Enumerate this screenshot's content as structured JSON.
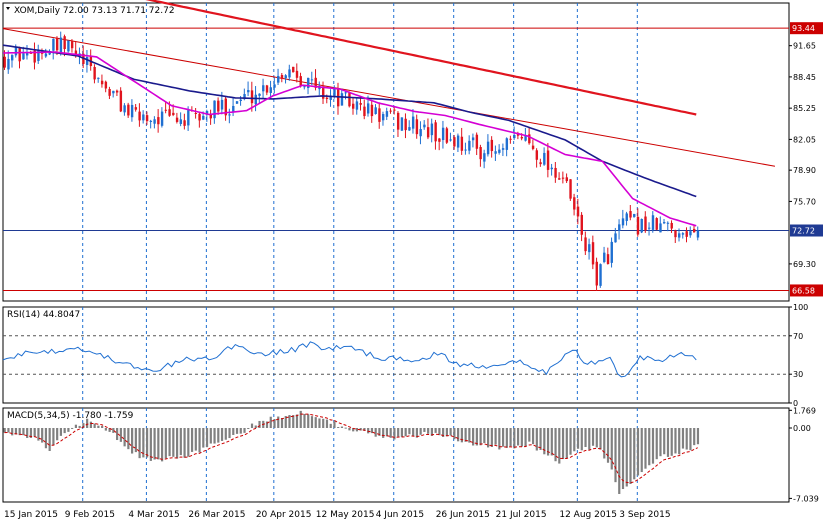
{
  "chart_data": [
    {
      "type": "candlestick",
      "title": "XOM,Daily 72.00 73.13 71.71 72.72",
      "symbol": "XOM",
      "timeframe": "Daily",
      "ohlc_last": {
        "open": 72.0,
        "high": 73.13,
        "low": 71.71,
        "close": 72.72
      },
      "y_ticks": [
        "91.65",
        "88.45",
        "85.25",
        "82.05",
        "78.90",
        "75.70",
        "69.30"
      ],
      "ylim": [
        65.5,
        95.2
      ],
      "price_labels": [
        {
          "text": "93.44",
          "value": 93.44,
          "color": "#cc0000"
        },
        {
          "text": "72.72",
          "value": 72.72,
          "color": "#1f3a93"
        },
        {
          "text": "66.58",
          "value": 66.58,
          "color": "#cc0000"
        }
      ],
      "x_tick_labels": [
        "15 Jan 2015",
        "9 Feb 2015",
        "4 Mar 2015",
        "26 Mar 2015",
        "20 Apr 2015",
        "12 May 2015",
        "4 Jun 2015",
        "26 Jun 2015",
        "21 Jul 2015",
        "12 Aug 2015",
        "3 Sep 2015"
      ],
      "colors": {
        "up": "#1f6fd1",
        "down": "#e0141e",
        "ma_fast": "#d400d4",
        "ma_mid": "#1a1a8c",
        "ma_slow": "#e0141e",
        "trendline": "#cc0000"
      },
      "key_points": [
        {
          "date": "15 Jan 2015",
          "close": 90.5
        },
        {
          "date": "9 Feb 2015",
          "close": 91.5
        },
        {
          "date": "4 Mar 2015",
          "close": 84.5
        },
        {
          "date": "26 Mar 2015",
          "close": 84.0
        },
        {
          "date": "20 Apr 2015",
          "close": 87.0
        },
        {
          "date": "1 May 2015",
          "close": 89.5
        },
        {
          "date": "12 May 2015",
          "close": 87.0
        },
        {
          "date": "4 Jun 2015",
          "close": 84.5
        },
        {
          "date": "26 Jun 2015",
          "close": 82.5
        },
        {
          "date": "21 Jul 2015",
          "close": 80.5
        },
        {
          "date": "30 Jul 2015",
          "close": 82.5
        },
        {
          "date": "12 Aug 2015",
          "close": 78.0
        },
        {
          "date": "24 Aug 2015",
          "close": 68.0
        },
        {
          "date": "3 Sep 2015",
          "close": 73.5
        },
        {
          "date": "15 Sep 2015",
          "close": 72.72
        }
      ],
      "ma_fast_points": [
        [
          0,
          90.9
        ],
        [
          14,
          91.0
        ],
        [
          25,
          90.5
        ],
        [
          35,
          88.0
        ],
        [
          45,
          85.5
        ],
        [
          55,
          84.6
        ],
        [
          65,
          85.0
        ],
        [
          72,
          86.5
        ],
        [
          80,
          87.6
        ],
        [
          90,
          87.2
        ],
        [
          100,
          85.8
        ],
        [
          110,
          84.9
        ],
        [
          118,
          84.5
        ],
        [
          128,
          83.5
        ],
        [
          140,
          82.4
        ],
        [
          150,
          80.5
        ],
        [
          160,
          79.8
        ],
        [
          168,
          76.0
        ],
        [
          178,
          74.0
        ],
        [
          185,
          73.2
        ]
      ],
      "ma_mid_points": [
        [
          0,
          91.7
        ],
        [
          20,
          90.6
        ],
        [
          35,
          88.2
        ],
        [
          50,
          87.0
        ],
        [
          62,
          86.3
        ],
        [
          72,
          86.2
        ],
        [
          85,
          86.5
        ],
        [
          100,
          86.2
        ],
        [
          115,
          85.8
        ],
        [
          125,
          84.8
        ],
        [
          135,
          84.0
        ],
        [
          150,
          82.0
        ],
        [
          160,
          79.8
        ],
        [
          172,
          78.0
        ],
        [
          185,
          76.2
        ]
      ],
      "ma_slow_points": [
        [
          0,
          99.5
        ],
        [
          185,
          84.6
        ]
      ],
      "trendline_points": [
        [
          0,
          93.4
        ],
        [
          206,
          79.3
        ]
      ]
    },
    {
      "type": "line",
      "title": "RSI(14) 44.8047",
      "name": "RSI(14)",
      "last_value": 44.8047,
      "ylim": [
        0,
        100
      ],
      "levels": [
        70,
        30
      ],
      "y_ticks": [
        "100",
        "70",
        "30",
        "0"
      ],
      "color": "#1f6fd1",
      "points": [
        [
          0,
          44
        ],
        [
          5,
          52
        ],
        [
          10,
          54
        ],
        [
          15,
          55
        ],
        [
          20,
          58
        ],
        [
          28,
          47
        ],
        [
          36,
          36
        ],
        [
          40,
          32
        ],
        [
          48,
          45
        ],
        [
          55,
          46
        ],
        [
          62,
          60
        ],
        [
          70,
          50
        ],
        [
          78,
          56
        ],
        [
          82,
          62
        ],
        [
          86,
          57
        ],
        [
          92,
          58
        ],
        [
          100,
          48
        ],
        [
          108,
          44
        ],
        [
          116,
          51
        ],
        [
          122,
          40
        ],
        [
          130,
          39
        ],
        [
          138,
          45
        ],
        [
          145,
          31
        ],
        [
          152,
          57
        ],
        [
          156,
          40
        ],
        [
          162,
          50
        ],
        [
          165,
          25
        ],
        [
          170,
          48
        ],
        [
          176,
          46
        ],
        [
          180,
          52
        ],
        [
          185,
          45
        ]
      ]
    },
    {
      "type": "bar",
      "title": "MACD(5,34,5) -1.780 -1.759",
      "name": "MACD(5,34,5)",
      "last_values": [
        -1.78,
        -1.759
      ],
      "ylim": [
        -7.4,
        2.0
      ],
      "y_ticks": [
        "1.769",
        "0.00",
        "-7.039"
      ],
      "bar_color": "#808080",
      "signal_color": "#cc0000",
      "points": [
        [
          0,
          -0.4
        ],
        [
          8,
          -1.0
        ],
        [
          12,
          -2.1
        ],
        [
          18,
          0.1
        ],
        [
          22,
          0.8
        ],
        [
          28,
          -0.2
        ],
        [
          34,
          -2.5
        ],
        [
          40,
          -3.3
        ],
        [
          48,
          -2.8
        ],
        [
          56,
          -1.6
        ],
        [
          62,
          -0.8
        ],
        [
          68,
          0.7
        ],
        [
          75,
          1.3
        ],
        [
          80,
          1.6
        ],
        [
          84,
          1.1
        ],
        [
          90,
          0.2
        ],
        [
          96,
          -0.5
        ],
        [
          104,
          -1.1
        ],
        [
          112,
          -0.6
        ],
        [
          118,
          -0.8
        ],
        [
          125,
          -1.5
        ],
        [
          133,
          -2.0
        ],
        [
          140,
          -1.6
        ],
        [
          148,
          -3.4
        ],
        [
          152,
          -2.4
        ],
        [
          158,
          -1.8
        ],
        [
          162,
          -4.2
        ],
        [
          164,
          -6.4
        ],
        [
          168,
          -5.0
        ],
        [
          174,
          -3.0
        ],
        [
          180,
          -2.4
        ],
        [
          185,
          -1.8
        ]
      ]
    }
  ]
}
